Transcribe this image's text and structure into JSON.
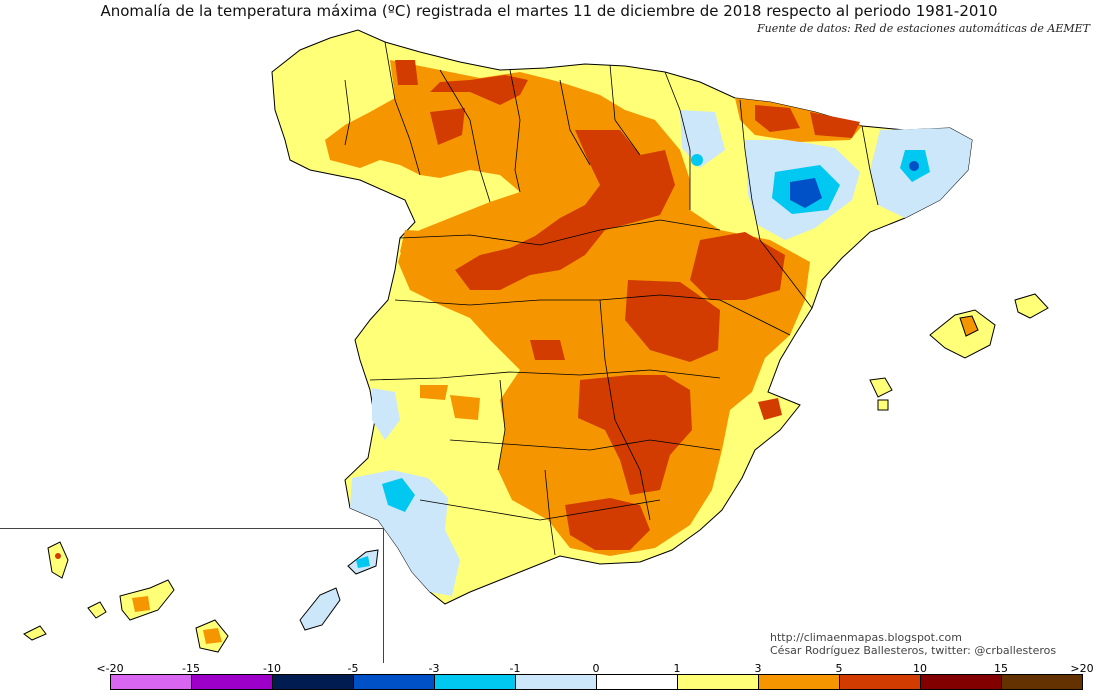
{
  "title": "Anomalía de la temperatura máxima (ºC) registrada el martes 11 de diciembre de 2018 respecto al periodo 1981-2010",
  "source": "Fuente de datos: Red de estaciones automáticas de AEMET",
  "credits": {
    "line1": "http://climaenmapas.blogspot.com",
    "line2": "César Rodríguez Ballesteros, twitter: @crballesteros"
  },
  "legend": {
    "ticks": [
      "<-20",
      "-15",
      "-10",
      "-5",
      "-3",
      "-1",
      "0",
      "1",
      "3",
      "5",
      "10",
      "15",
      ">20"
    ],
    "colors": [
      "#d966f0",
      "#9d00c8",
      "#001c50",
      "#0050c8",
      "#00c8f0",
      "#cce6fa",
      "#ffffff",
      "#ffff78",
      "#f59600",
      "#d23c00",
      "#820000",
      "#643200"
    ]
  },
  "palette": {
    "border": "#000000",
    "pale_blue": "#cce6fa",
    "cyan": "#00c8f0",
    "blue": "#0050c8",
    "yellow": "#ffff78",
    "orange": "#f59600",
    "red": "#d23c00"
  }
}
